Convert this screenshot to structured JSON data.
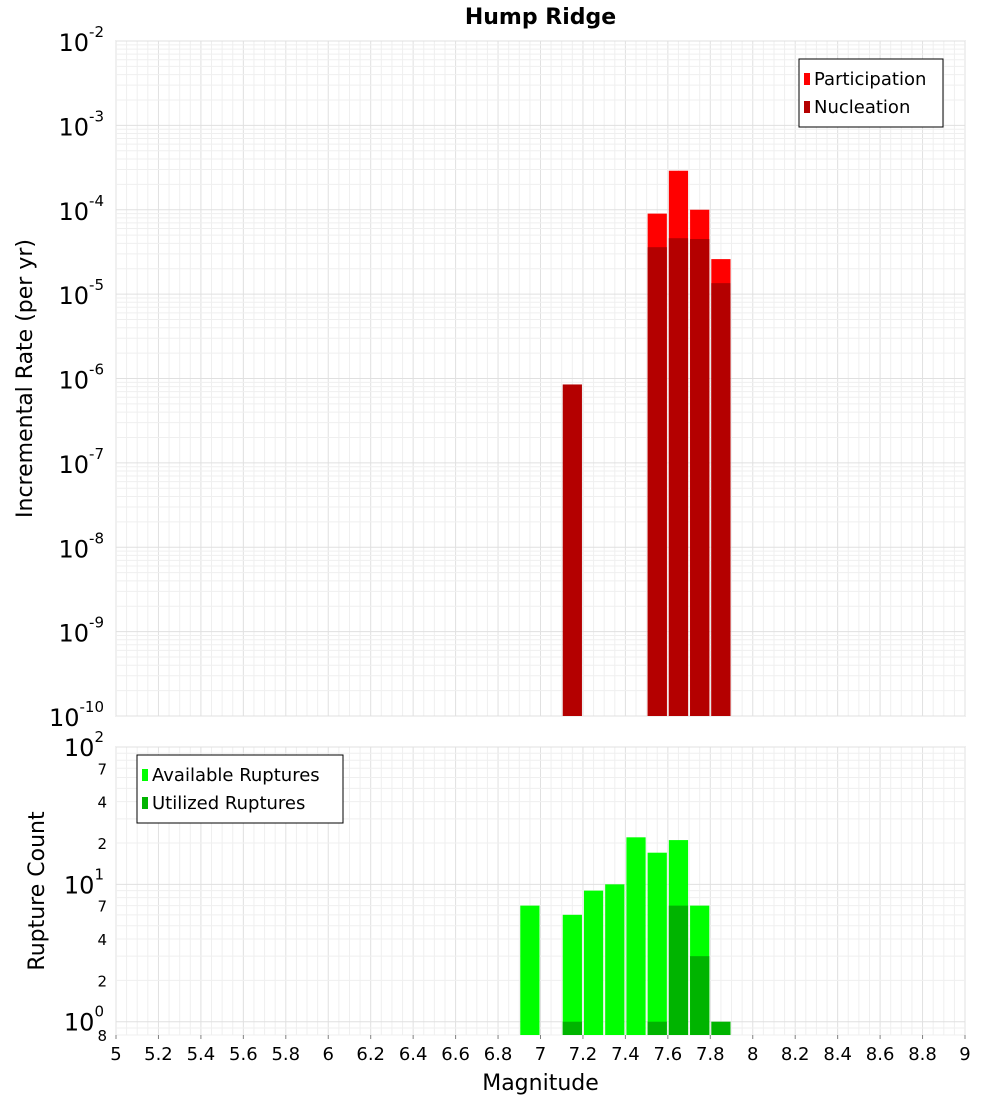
{
  "chart_data": [
    {
      "type": "bar",
      "title": "Hump Ridge",
      "ylabel": "Incremental Rate (per yr)",
      "xlabel": "",
      "yscale": "log",
      "ylim": [
        1e-10,
        0.01
      ],
      "xlim": [
        5,
        9
      ],
      "y_ticks": [
        {
          "base": "10",
          "exp": "-10",
          "value": 1e-10
        },
        {
          "base": "10",
          "exp": "-9",
          "value": 1e-09
        },
        {
          "base": "10",
          "exp": "-8",
          "value": 1e-08
        },
        {
          "base": "10",
          "exp": "-7",
          "value": 1e-07
        },
        {
          "base": "10",
          "exp": "-6",
          "value": 1e-06
        },
        {
          "base": "10",
          "exp": "-5",
          "value": 1e-05
        },
        {
          "base": "10",
          "exp": "-4",
          "value": 0.0001
        },
        {
          "base": "10",
          "exp": "-3",
          "value": 0.001
        },
        {
          "base": "10",
          "exp": "-2",
          "value": 0.01
        }
      ],
      "legend": {
        "position": "top-right",
        "entries": [
          "Participation",
          "Nucleation"
        ]
      },
      "series": [
        {
          "name": "Participation",
          "color": "#ff0000",
          "x": [
            7.55,
            7.65,
            7.75,
            7.85
          ],
          "values": [
            9e-05,
            0.00029,
            0.0001,
            2.6e-05
          ]
        },
        {
          "name": "Nucleation",
          "color": "#b40000",
          "x": [
            7.15,
            7.55,
            7.65,
            7.75,
            7.85
          ],
          "values": [
            8.5e-07,
            3.6e-05,
            4.6e-05,
            4.5e-05,
            1.35e-05
          ]
        }
      ]
    },
    {
      "type": "bar",
      "title": "",
      "ylabel": "Rupture Count",
      "xlabel": "Magnitude",
      "yscale": "log",
      "ylim": [
        0.8,
        100
      ],
      "xlim": [
        5,
        9
      ],
      "y_ticks": [
        {
          "base": "10",
          "exp": "0",
          "value": 1,
          "label": "8",
          "label_value": 0.8
        },
        {
          "base": "10",
          "exp": "1",
          "value": 10
        },
        {
          "base": "10",
          "exp": "2",
          "value": 100
        }
      ],
      "y_minor_ticks": [
        {
          "label": "2",
          "value": 2
        },
        {
          "label": "4",
          "value": 4
        },
        {
          "label": "7",
          "value": 7
        },
        {
          "label": "2",
          "value": 20
        },
        {
          "label": "4",
          "value": 40
        },
        {
          "label": "7",
          "value": 70
        }
      ],
      "x_ticks": [
        "5",
        "5.2",
        "5.4",
        "5.6",
        "5.8",
        "6",
        "6.2",
        "6.4",
        "6.6",
        "6.8",
        "7",
        "7.2",
        "7.4",
        "7.6",
        "7.8",
        "8",
        "8.2",
        "8.4",
        "8.6",
        "8.8",
        "9"
      ],
      "legend": {
        "position": "top-left",
        "entries": [
          "Available Ruptures",
          "Utilized Ruptures"
        ]
      },
      "series": [
        {
          "name": "Available Ruptures",
          "color": "#00ff00",
          "x": [
            6.95,
            7.15,
            7.25,
            7.35,
            7.45,
            7.55,
            7.65,
            7.75
          ],
          "values": [
            7,
            6,
            9,
            10,
            22,
            17,
            21,
            7
          ]
        },
        {
          "name": "Utilized Ruptures",
          "color": "#00b400",
          "x": [
            7.15,
            7.55,
            7.65,
            7.75,
            7.85
          ],
          "values": [
            1,
            1,
            7,
            3,
            1
          ]
        }
      ]
    }
  ]
}
